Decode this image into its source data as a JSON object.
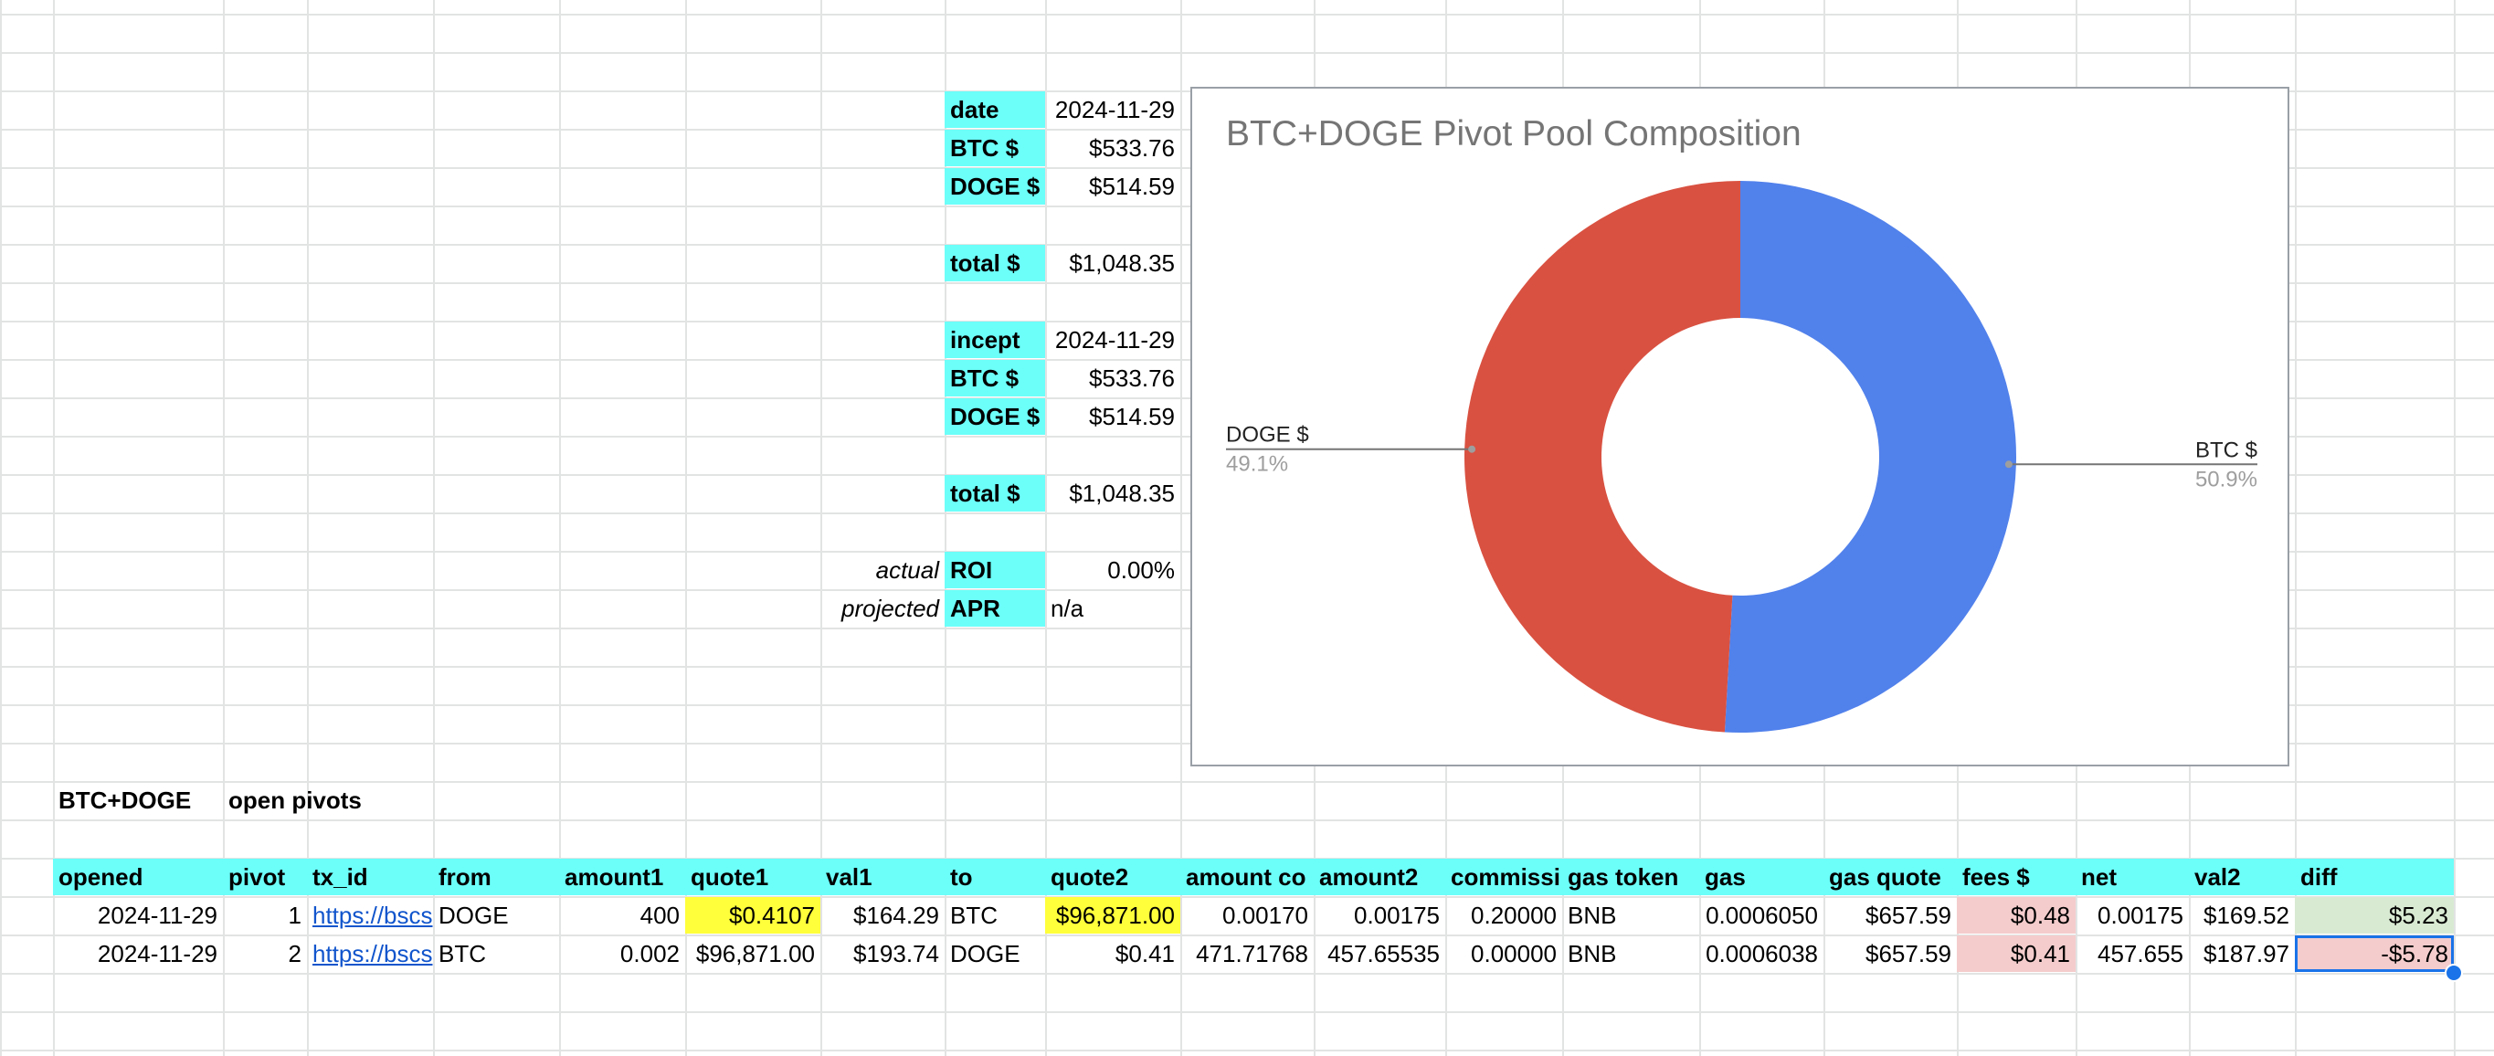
{
  "summary": {
    "rows": [
      {
        "label": "date",
        "value": "2024-11-29",
        "prefix": ""
      },
      {
        "label": "BTC $",
        "value": "$533.76",
        "prefix": ""
      },
      {
        "label": "DOGE $",
        "value": "$514.59",
        "prefix": ""
      },
      {
        "label": "total $",
        "value": "$1,048.35",
        "prefix": ""
      },
      {
        "label": "incept",
        "value": "2024-11-29",
        "prefix": ""
      },
      {
        "label": "BTC $",
        "value": "$533.76",
        "prefix": ""
      },
      {
        "label": "DOGE $",
        "value": "$514.59",
        "prefix": ""
      },
      {
        "label": "total $",
        "value": "$1,048.35",
        "prefix": ""
      },
      {
        "label": "ROI",
        "value": "0.00%",
        "prefix": "actual"
      },
      {
        "label": "APR",
        "value": "n/a",
        "prefix": "projected"
      }
    ]
  },
  "chart_data": {
    "type": "pie",
    "title": "BTC+DOGE Pivot Pool Composition",
    "donut": true,
    "slices": [
      {
        "label": "BTC $",
        "value": 50.9,
        "pct_label": "50.9%",
        "color": "#5181eb"
      },
      {
        "label": "DOGE $",
        "value": 49.1,
        "pct_label": "49.1%",
        "color": "#d95141"
      }
    ]
  },
  "section": {
    "name": "BTC+DOGE",
    "subtitle": "open pivots"
  },
  "table": {
    "headers": [
      "opened",
      "pivot",
      "tx_id",
      "from",
      "amount1",
      "quote1",
      "val1",
      "to",
      "quote2",
      "amount co",
      "amount2",
      "commissi",
      "gas token",
      "gas",
      "gas quote",
      "fees $",
      "net",
      "val2",
      "diff"
    ],
    "rows": [
      [
        "2024-11-29",
        "1",
        "https://bscs",
        "DOGE",
        "400",
        "$0.4107",
        "$164.29",
        "BTC",
        "$96,871.00",
        "0.00170",
        "0.00175",
        "0.20000",
        "BNB",
        "0.0006050",
        "$657.59",
        "$0.48",
        "0.00175",
        "$169.52",
        "$5.23"
      ],
      [
        "2024-11-29",
        "2",
        "https://bscs",
        "BTC",
        "0.002",
        "$96,871.00",
        "$193.74",
        "DOGE",
        "$0.41",
        "471.71768",
        "457.65535",
        "0.00000",
        "BNB",
        "0.0006038",
        "$657.59",
        "$0.41",
        "457.655",
        "$187.97",
        "-$5.78"
      ]
    ]
  },
  "colors": {
    "header_fill": "#6cfff9",
    "highlight_yellow": "#ffff3b",
    "fees_pink": "#f4cccc",
    "gain_green": "#d9ead3",
    "loss_pink": "#f4cccc",
    "selection": "#1a73e8"
  }
}
